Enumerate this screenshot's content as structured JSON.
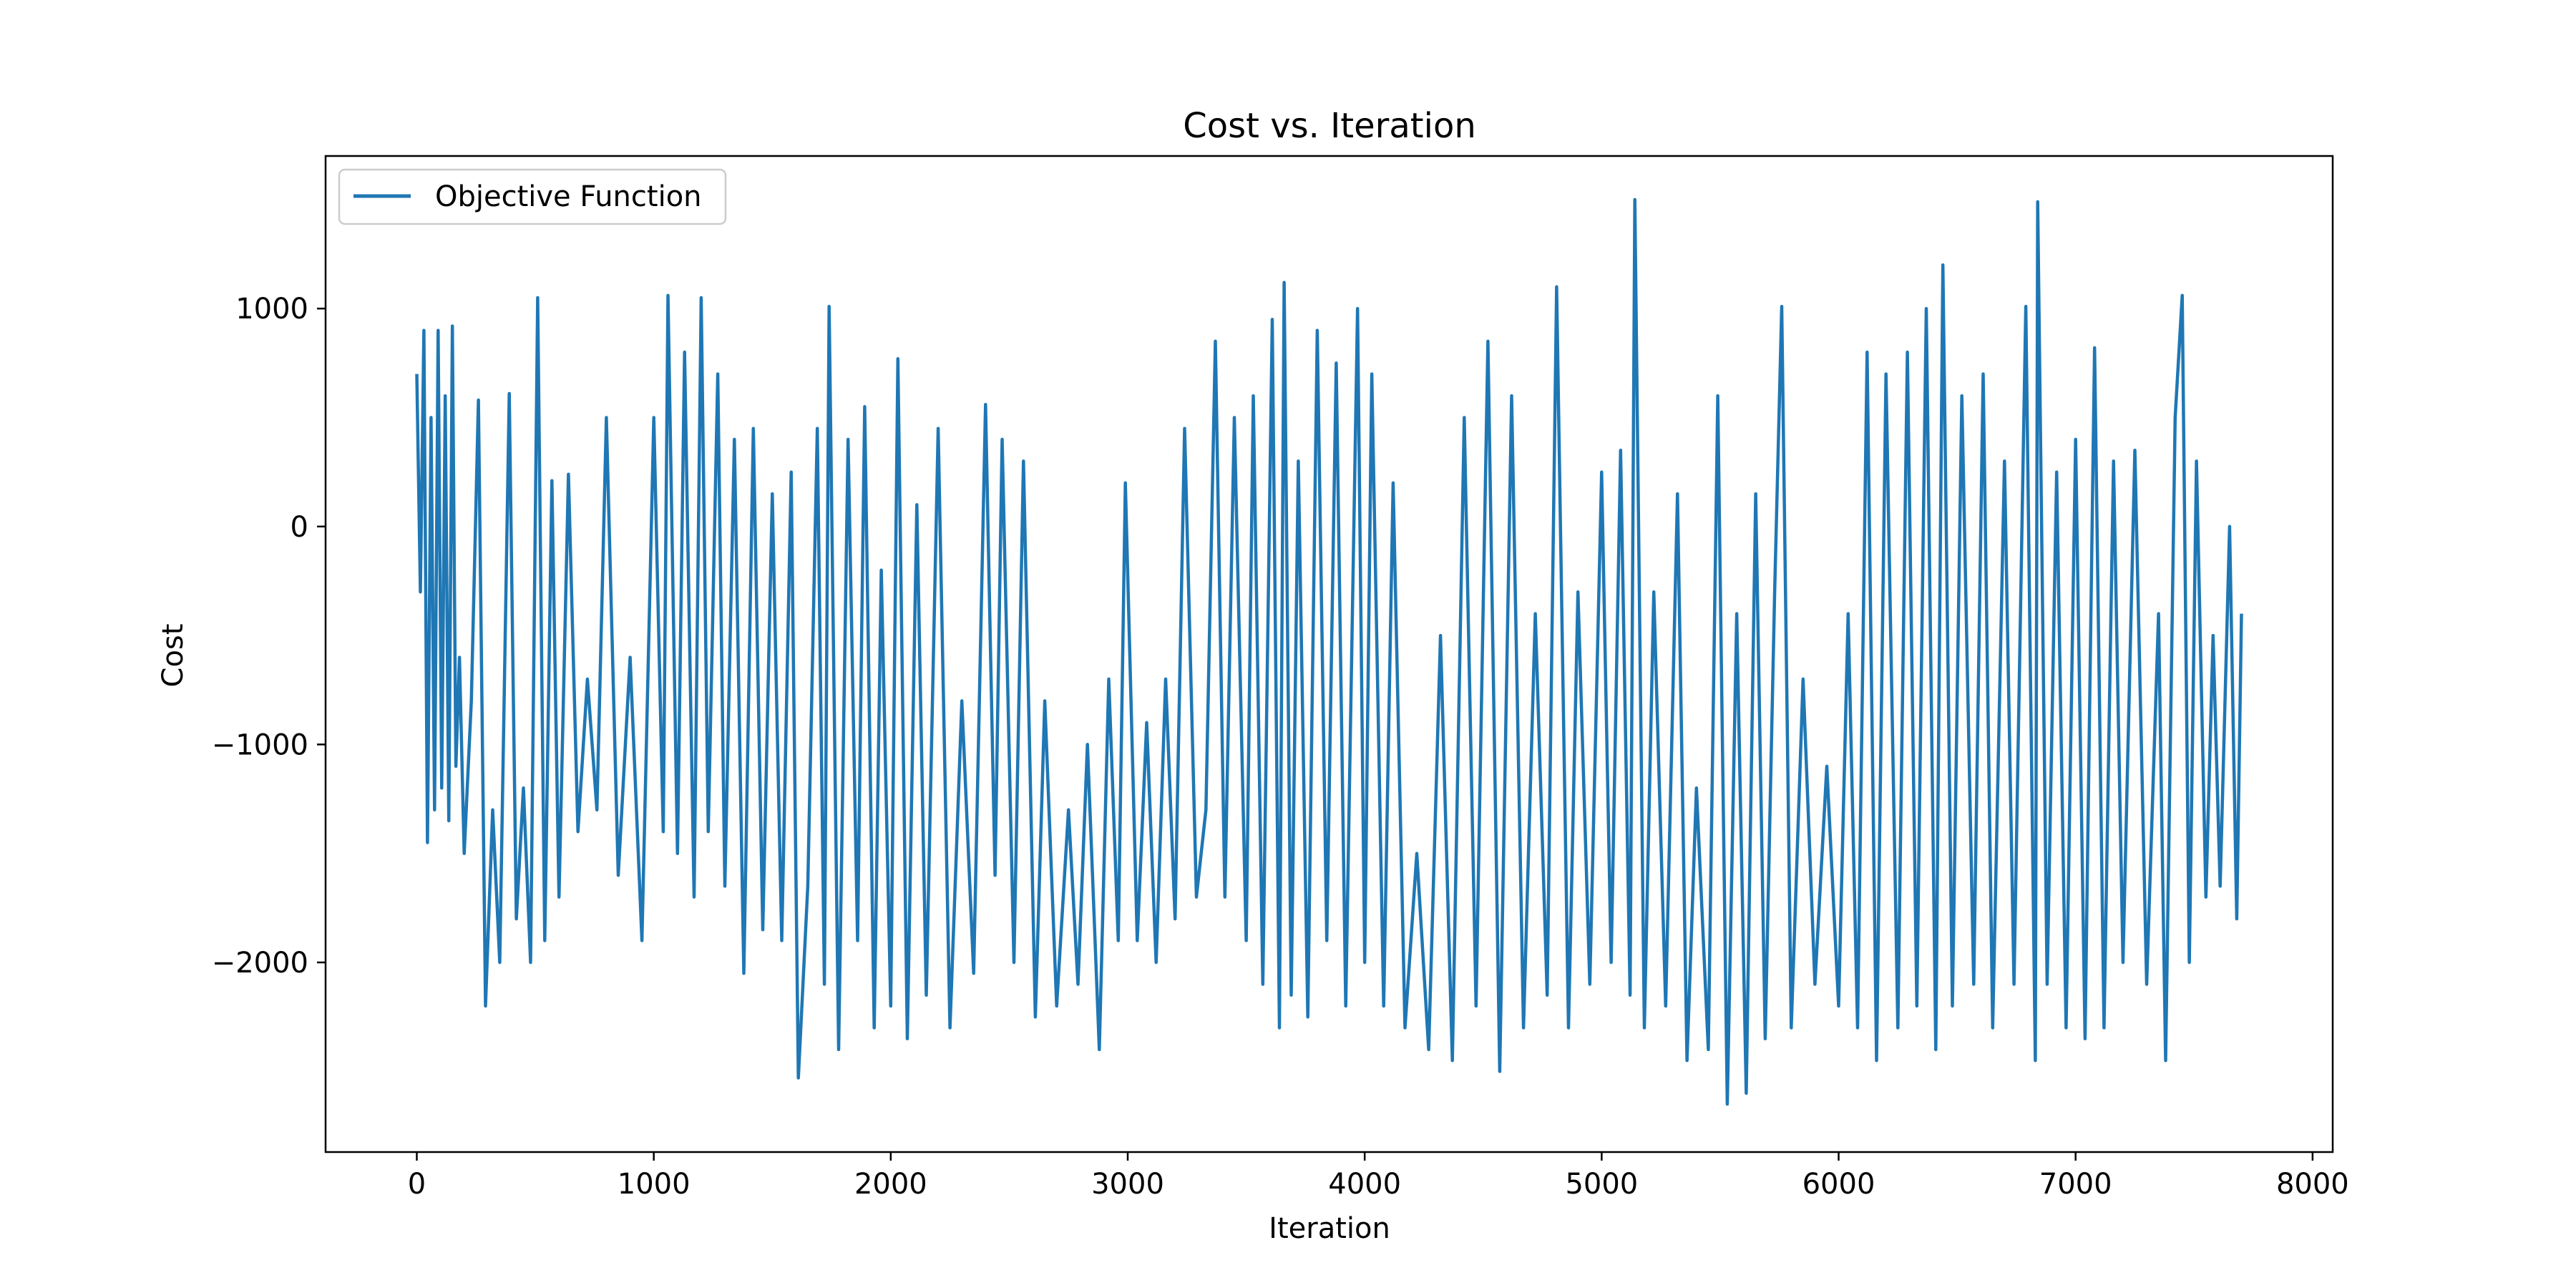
{
  "chart_data": {
    "type": "line",
    "title": "Cost vs. Iteration",
    "xlabel": "Iteration",
    "ylabel": "Cost",
    "xlim": [
      -385,
      8085
    ],
    "ylim": [
      -2870,
      1700
    ],
    "xticks": [
      0,
      1000,
      2000,
      3000,
      4000,
      5000,
      6000,
      7000,
      8000
    ],
    "xtick_labels": [
      "0",
      "1000",
      "2000",
      "3000",
      "4000",
      "5000",
      "6000",
      "7000",
      "8000"
    ],
    "yticks": [
      1000,
      0,
      -1000,
      -2000
    ],
    "ytick_labels": [
      "1000",
      "0",
      "−1000",
      "−2000"
    ],
    "grid": false,
    "legend_position": "upper-left",
    "series": [
      {
        "name": "Objective Function",
        "color": "#1f77b4",
        "points": [
          [
            0,
            700
          ],
          [
            15,
            -300
          ],
          [
            30,
            900
          ],
          [
            45,
            -1450
          ],
          [
            60,
            500
          ],
          [
            75,
            -1300
          ],
          [
            90,
            900
          ],
          [
            105,
            -1200
          ],
          [
            120,
            600
          ],
          [
            135,
            -1350
          ],
          [
            150,
            920
          ],
          [
            165,
            -1100
          ],
          [
            180,
            -600
          ],
          [
            200,
            -1500
          ],
          [
            230,
            -800
          ],
          [
            260,
            580
          ],
          [
            290,
            -2200
          ],
          [
            320,
            -1300
          ],
          [
            350,
            -2000
          ],
          [
            390,
            610
          ],
          [
            420,
            -1800
          ],
          [
            450,
            -1200
          ],
          [
            480,
            -2000
          ],
          [
            510,
            1050
          ],
          [
            540,
            -1900
          ],
          [
            570,
            210
          ],
          [
            600,
            -1700
          ],
          [
            640,
            240
          ],
          [
            680,
            -1400
          ],
          [
            720,
            -700
          ],
          [
            760,
            -1300
          ],
          [
            800,
            500
          ],
          [
            850,
            -1600
          ],
          [
            900,
            -600
          ],
          [
            950,
            -1900
          ],
          [
            1000,
            500
          ],
          [
            1040,
            -1400
          ],
          [
            1060,
            1060
          ],
          [
            1100,
            -1500
          ],
          [
            1130,
            800
          ],
          [
            1170,
            -1700
          ],
          [
            1200,
            1050
          ],
          [
            1230,
            -1400
          ],
          [
            1270,
            700
          ],
          [
            1300,
            -1650
          ],
          [
            1340,
            400
          ],
          [
            1380,
            -2050
          ],
          [
            1420,
            450
          ],
          [
            1460,
            -1850
          ],
          [
            1500,
            150
          ],
          [
            1540,
            -1900
          ],
          [
            1580,
            250
          ],
          [
            1610,
            -2530
          ],
          [
            1650,
            -1650
          ],
          [
            1690,
            450
          ],
          [
            1720,
            -2100
          ],
          [
            1740,
            1010
          ],
          [
            1780,
            -2400
          ],
          [
            1820,
            400
          ],
          [
            1860,
            -1900
          ],
          [
            1890,
            550
          ],
          [
            1930,
            -2300
          ],
          [
            1960,
            -200
          ],
          [
            2000,
            -2200
          ],
          [
            2030,
            770
          ],
          [
            2070,
            -2350
          ],
          [
            2110,
            100
          ],
          [
            2150,
            -2150
          ],
          [
            2200,
            450
          ],
          [
            2250,
            -2300
          ],
          [
            2300,
            -800
          ],
          [
            2350,
            -2050
          ],
          [
            2400,
            560
          ],
          [
            2440,
            -1600
          ],
          [
            2470,
            400
          ],
          [
            2520,
            -2000
          ],
          [
            2560,
            300
          ],
          [
            2610,
            -2250
          ],
          [
            2650,
            -800
          ],
          [
            2700,
            -2200
          ],
          [
            2750,
            -1300
          ],
          [
            2790,
            -2100
          ],
          [
            2830,
            -1000
          ],
          [
            2880,
            -2400
          ],
          [
            2920,
            -700
          ],
          [
            2960,
            -1900
          ],
          [
            2990,
            200
          ],
          [
            3040,
            -1900
          ],
          [
            3080,
            -900
          ],
          [
            3120,
            -2000
          ],
          [
            3160,
            -700
          ],
          [
            3200,
            -1800
          ],
          [
            3240,
            450
          ],
          [
            3290,
            -1700
          ],
          [
            3330,
            -1300
          ],
          [
            3370,
            850
          ],
          [
            3410,
            -1700
          ],
          [
            3450,
            500
          ],
          [
            3500,
            -1900
          ],
          [
            3530,
            600
          ],
          [
            3570,
            -2100
          ],
          [
            3610,
            950
          ],
          [
            3640,
            -2300
          ],
          [
            3660,
            1120
          ],
          [
            3690,
            -2150
          ],
          [
            3720,
            300
          ],
          [
            3760,
            -2250
          ],
          [
            3800,
            900
          ],
          [
            3840,
            -1900
          ],
          [
            3880,
            750
          ],
          [
            3920,
            -2200
          ],
          [
            3970,
            1000
          ],
          [
            4000,
            -2000
          ],
          [
            4030,
            700
          ],
          [
            4080,
            -2200
          ],
          [
            4120,
            200
          ],
          [
            4170,
            -2300
          ],
          [
            4220,
            -1500
          ],
          [
            4270,
            -2400
          ],
          [
            4320,
            -500
          ],
          [
            4370,
            -2450
          ],
          [
            4420,
            500
          ],
          [
            4470,
            -2200
          ],
          [
            4520,
            850
          ],
          [
            4570,
            -2500
          ],
          [
            4620,
            600
          ],
          [
            4670,
            -2300
          ],
          [
            4720,
            -400
          ],
          [
            4770,
            -2150
          ],
          [
            4810,
            1100
          ],
          [
            4860,
            -2300
          ],
          [
            4900,
            -300
          ],
          [
            4950,
            -2100
          ],
          [
            5000,
            250
          ],
          [
            5040,
            -2000
          ],
          [
            5080,
            350
          ],
          [
            5120,
            -2150
          ],
          [
            5140,
            1500
          ],
          [
            5180,
            -2300
          ],
          [
            5220,
            -300
          ],
          [
            5270,
            -2200
          ],
          [
            5320,
            150
          ],
          [
            5360,
            -2450
          ],
          [
            5400,
            -1200
          ],
          [
            5450,
            -2400
          ],
          [
            5490,
            600
          ],
          [
            5530,
            -2650
          ],
          [
            5570,
            -400
          ],
          [
            5610,
            -2600
          ],
          [
            5650,
            150
          ],
          [
            5690,
            -2350
          ],
          [
            5730,
            -300
          ],
          [
            5760,
            1010
          ],
          [
            5800,
            -2300
          ],
          [
            5850,
            -700
          ],
          [
            5900,
            -2100
          ],
          [
            5950,
            -1100
          ],
          [
            6000,
            -2200
          ],
          [
            6040,
            -400
          ],
          [
            6080,
            -2300
          ],
          [
            6120,
            800
          ],
          [
            6160,
            -2450
          ],
          [
            6200,
            700
          ],
          [
            6250,
            -2300
          ],
          [
            6290,
            800
          ],
          [
            6330,
            -2200
          ],
          [
            6370,
            1000
          ],
          [
            6410,
            -2400
          ],
          [
            6440,
            1200
          ],
          [
            6480,
            -2200
          ],
          [
            6520,
            600
          ],
          [
            6570,
            -2100
          ],
          [
            6610,
            700
          ],
          [
            6650,
            -2300
          ],
          [
            6700,
            300
          ],
          [
            6740,
            -2100
          ],
          [
            6790,
            1010
          ],
          [
            6830,
            -2450
          ],
          [
            6840,
            1490
          ],
          [
            6880,
            -2100
          ],
          [
            6920,
            250
          ],
          [
            6960,
            -2300
          ],
          [
            7000,
            400
          ],
          [
            7040,
            -2350
          ],
          [
            7080,
            820
          ],
          [
            7120,
            -2300
          ],
          [
            7160,
            300
          ],
          [
            7200,
            -2000
          ],
          [
            7250,
            350
          ],
          [
            7300,
            -2100
          ],
          [
            7350,
            -400
          ],
          [
            7380,
            -2450
          ],
          [
            7420,
            500
          ],
          [
            7450,
            1060
          ],
          [
            7480,
            -2000
          ],
          [
            7510,
            300
          ],
          [
            7550,
            -1700
          ],
          [
            7580,
            -500
          ],
          [
            7610,
            -1650
          ],
          [
            7650,
            0
          ],
          [
            7680,
            -1800
          ],
          [
            7700,
            -400
          ]
        ]
      }
    ]
  }
}
